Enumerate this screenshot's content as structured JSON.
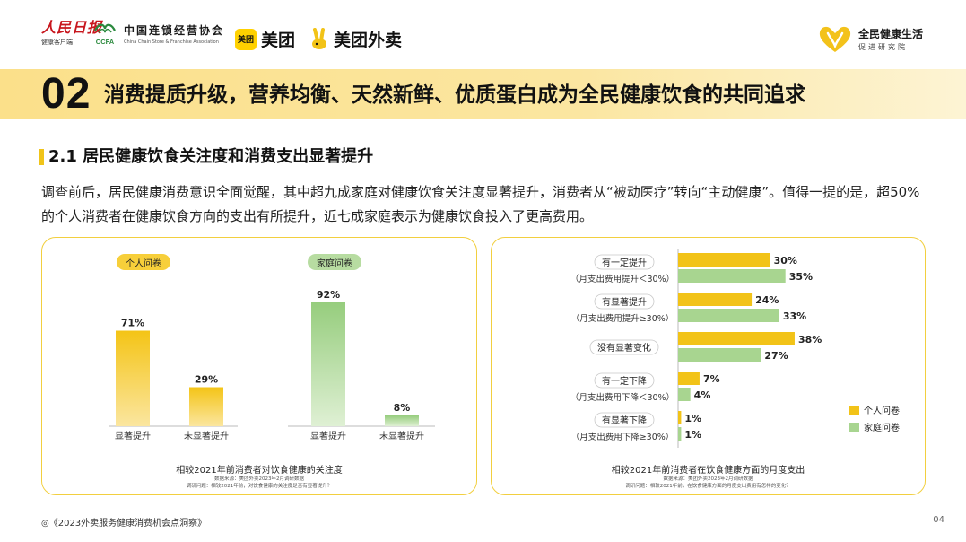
{
  "logos": {
    "people_daily": {
      "main": "人民日报",
      "sub": "健康客户端"
    },
    "ccfa": {
      "cn": "中国连锁经营协会",
      "en": "China Chain Store & Franchise Association",
      "mark": "CCFA"
    },
    "meituan": {
      "box": "美团",
      "name": "美团"
    },
    "waimai": {
      "name": "美团外卖"
    },
    "health": {
      "title": "全民健康生活",
      "subtitle": "促进研究院"
    }
  },
  "banner": {
    "number": "02",
    "title": "消费提质升级，营养均衡、天然新鲜、优质蛋白成为全民健康饮食的共同追求"
  },
  "section": {
    "title": "2.1 居民健康饮食关注度和消费支出显著提升",
    "body": "调查前后，居民健康消费意识全面觉醒，其中超九成家庭对健康饮食关注度显著提升，消费者从“被动医疗”转向“主动健康”。值得一提的是，超50%的个人消费者在健康饮食方向的支出有所提升，近七成家庭表示为健康饮食投入了更高费用。"
  },
  "colors": {
    "personal": "#f2c318",
    "family": "#a8d590",
    "personal_pill_bg": "#f7cf3a",
    "family_pill_bg": "#b7dca1"
  },
  "left_panel": {
    "pill_personal": "个人问卷",
    "pill_family": "家庭问卷",
    "footer_title": "相较2021年前消费者对饮食健康的关注度",
    "footer_source": "数据来源：美团外卖2023年2月调研数据",
    "footer_question": "调研问题：相较2021年前，对饮食健康的关注度是否有显著提升？"
  },
  "right_panel": {
    "legend_personal": "个人问卷",
    "legend_family": "家庭问卷",
    "footer_title": "相较2021年前消费者在饮食健康方面的月度支出",
    "footer_source": "数据来源：美团外卖2023年2月调研数据",
    "footer_question": "调研问题：相较2021年前，在饮食健康方面的月度支出费用有怎样的变化？"
  },
  "chart_data": [
    {
      "type": "bar",
      "title": "相较2021年前消费者对饮食健康的关注度",
      "groups": [
        {
          "name": "个人问卷",
          "categories": [
            "显著提升",
            "未显著提升"
          ],
          "values": [
            71,
            29
          ],
          "labels": [
            "71%",
            "29%"
          ]
        },
        {
          "name": "家庭问卷",
          "categories": [
            "显著提升",
            "未显著提升"
          ],
          "values": [
            92,
            8
          ],
          "labels": [
            "92%",
            "8%"
          ]
        }
      ],
      "ylim": [
        0,
        100
      ]
    },
    {
      "type": "bar",
      "orientation": "horizontal",
      "title": "相较2021年前消费者在饮食健康方面的月度支出",
      "categories": [
        {
          "label": "有一定提升",
          "sub": "（月支出费用提升＜30%）"
        },
        {
          "label": "有显著提升",
          "sub": "（月支出费用提升≥30%）"
        },
        {
          "label": "没有显著变化",
          "sub": ""
        },
        {
          "label": "有一定下降",
          "sub": "（月支出费用下降＜30%）"
        },
        {
          "label": "有显著下降",
          "sub": "（月支出费用下降≥30%）"
        }
      ],
      "series": [
        {
          "name": "个人问卷",
          "values": [
            30,
            24,
            38,
            7,
            1
          ],
          "labels": [
            "30%",
            "24%",
            "38%",
            "7%",
            "1%"
          ]
        },
        {
          "name": "家庭问卷",
          "values": [
            35,
            33,
            27,
            4,
            1
          ],
          "labels": [
            "35%",
            "33%",
            "27%",
            "4%",
            "1%"
          ]
        }
      ],
      "legend": "bottom-right"
    }
  ],
  "footer": {
    "text": "◎《2023外卖服务健康消费机会点洞察》",
    "page": "04"
  }
}
